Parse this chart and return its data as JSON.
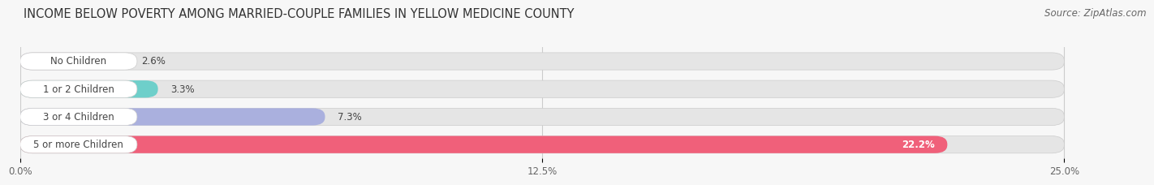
{
  "title": "INCOME BELOW POVERTY AMONG MARRIED-COUPLE FAMILIES IN YELLOW MEDICINE COUNTY",
  "source": "Source: ZipAtlas.com",
  "categories": [
    "No Children",
    "1 or 2 Children",
    "3 or 4 Children",
    "5 or more Children"
  ],
  "values": [
    2.6,
    3.3,
    7.3,
    22.2
  ],
  "labels": [
    "2.6%",
    "3.3%",
    "7.3%",
    "22.2%"
  ],
  "bar_colors": [
    "#c9b0d5",
    "#6ecfca",
    "#aab0de",
    "#f0607a"
  ],
  "xlim_data": 25.0,
  "xticks": [
    0.0,
    12.5,
    25.0
  ],
  "xticklabels": [
    "0.0%",
    "12.5%",
    "25.0%"
  ],
  "background_color": "#f7f7f7",
  "bar_bg_color": "#e5e5e5",
  "title_fontsize": 10.5,
  "label_fontsize": 8.5,
  "tick_fontsize": 8.5,
  "source_fontsize": 8.5,
  "bar_height": 0.62,
  "label_color_dark": "#444444",
  "label_color_white": "#ffffff"
}
